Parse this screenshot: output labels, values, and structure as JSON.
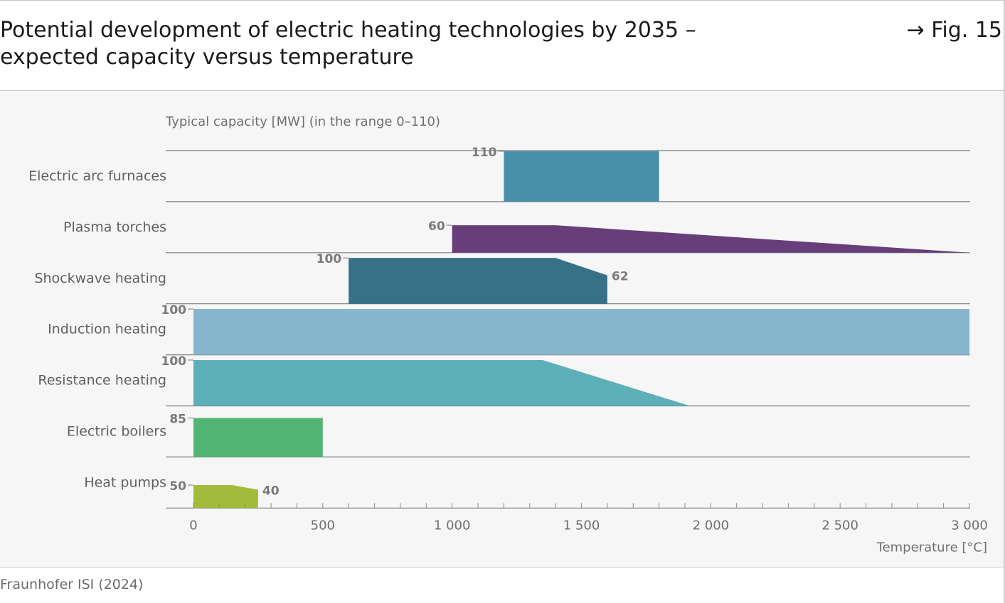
{
  "header": {
    "title_line1": "Potential development of electric heating technologies by 2035 –",
    "title_line2": "expected capacity versus temperature",
    "fig_ref": "→ Fig. 15"
  },
  "footer": {
    "source": "Fraunhofer ISI (2024)"
  },
  "chart_data": {
    "type": "area",
    "title": "Potential development of electric heating technologies by 2035 – expected capacity versus temperature",
    "capacity_label": "Typical capacity [MW] (in the range 0–110)",
    "xlabel": "Temperature [°C]",
    "xlim": [
      -100,
      3000
    ],
    "capacity_range": [
      0,
      110
    ],
    "x_tick_labels": [
      "0",
      "500",
      "1 000",
      "1 500",
      "2 000",
      "2 500",
      "3 000"
    ],
    "x_ticks": [
      0,
      500,
      1000,
      1500,
      2000,
      2500,
      3000
    ],
    "minor_tick_step": 100,
    "grid": "horizontal row separators",
    "series": [
      {
        "name": "Electric arc furnaces",
        "color": "#488faa",
        "points": [
          [
            1200,
            110
          ],
          [
            1800,
            110
          ]
        ],
        "value_labels": [
          {
            "text": "110",
            "at": "start"
          }
        ]
      },
      {
        "name": "Plasma torches",
        "color": "#673e7a",
        "points": [
          [
            1000,
            60
          ],
          [
            1400,
            60
          ],
          [
            3000,
            0
          ]
        ],
        "value_labels": [
          {
            "text": "60",
            "at": "start"
          }
        ]
      },
      {
        "name": "Shockwave heating",
        "color": "#367187",
        "points": [
          [
            600,
            100
          ],
          [
            1400,
            100
          ],
          [
            1600,
            62
          ]
        ],
        "value_labels": [
          {
            "text": "100",
            "at": "start"
          },
          {
            "text": "62",
            "at": "end"
          }
        ]
      },
      {
        "name": "Induction heating",
        "color": "#86b6cd",
        "points": [
          [
            0,
            100
          ],
          [
            3000,
            100
          ]
        ],
        "value_labels": [
          {
            "text": "100",
            "at": "start"
          }
        ]
      },
      {
        "name": "Resistance heating",
        "color": "#5eb0b8",
        "points": [
          [
            0,
            100
          ],
          [
            1350,
            100
          ],
          [
            1920,
            0
          ]
        ],
        "value_labels": [
          {
            "text": "100",
            "at": "start"
          }
        ]
      },
      {
        "name": "Electric boilers",
        "color": "#52b575",
        "points": [
          [
            0,
            85
          ],
          [
            500,
            85
          ]
        ],
        "value_labels": [
          {
            "text": "85",
            "at": "start"
          }
        ]
      },
      {
        "name": "Heat pumps",
        "color": "#a2bb3a",
        "points": [
          [
            0,
            50
          ],
          [
            150,
            50
          ],
          [
            250,
            40
          ]
        ],
        "value_labels": [
          {
            "text": "50",
            "at": "start"
          },
          {
            "text": "40",
            "at": "end"
          }
        ]
      }
    ]
  }
}
